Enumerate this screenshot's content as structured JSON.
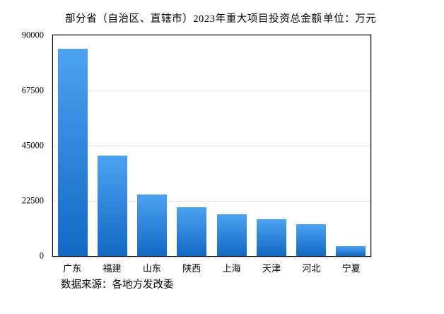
{
  "header": {
    "title": "部分省（自治区、直辖市）2023年重大项目投资总金额",
    "unit_label": "单位：万元"
  },
  "footer": {
    "source": "数据来源：各地方发改委"
  },
  "chart_data": {
    "type": "bar",
    "title": "部分省（自治区、直辖市）2023年重大项目投资总金额",
    "unit": "万元",
    "categories": [
      "广东",
      "福建",
      "山东",
      "陕西",
      "上海",
      "天津",
      "河北",
      "宁夏"
    ],
    "values": [
      84500,
      41000,
      25000,
      20000,
      17000,
      15000,
      13000,
      4000
    ],
    "xlabel": "",
    "ylabel": "",
    "ylim": [
      0,
      90000
    ],
    "yticks": [
      90000,
      67500,
      45000,
      22500,
      0
    ],
    "grid": "horizontal",
    "legend": "none",
    "source": "数据来源：各地方发改委",
    "colors": {
      "bar_gradient_top": "#4DA2F0",
      "bar_gradient_bottom": "#1269C4",
      "gridline": "#e1e1e1",
      "plot_border": "#000000",
      "text": "#000000",
      "background": "#ffffff"
    }
  }
}
